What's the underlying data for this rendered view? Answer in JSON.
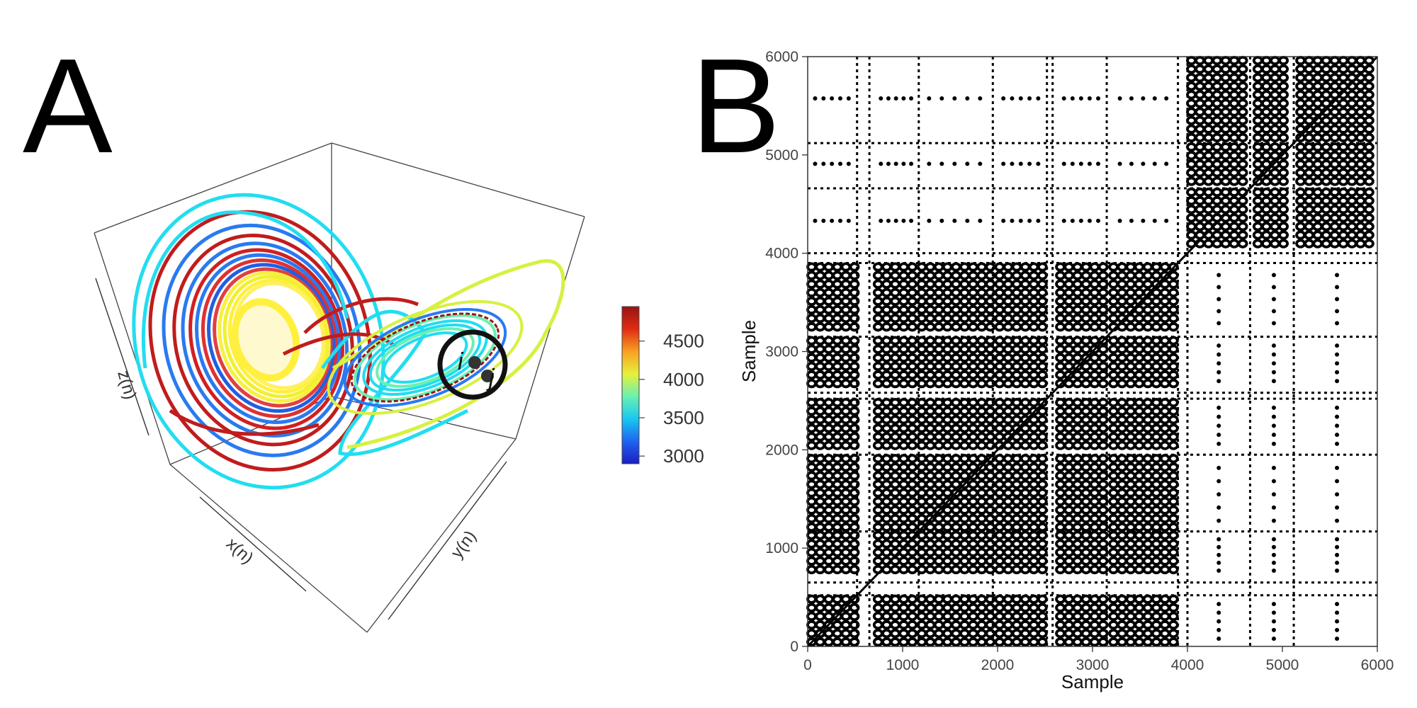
{
  "panels": {
    "a_label": "A",
    "b_label": "B"
  },
  "chart_data": [
    {
      "type": "scatter",
      "subtype": "3d-trajectory",
      "title": "",
      "axes": {
        "x": "x(n)",
        "y": "y(n)",
        "z": "z(n)"
      },
      "colorbar": {
        "ticks": [
          3000,
          3500,
          4000,
          4500
        ],
        "range": [
          2900,
          4950
        ],
        "colormap": [
          "#1c1ec0",
          "#1e64f0",
          "#19c8f0",
          "#6af0b0",
          "#e8f03c",
          "#f8a020",
          "#e02c14",
          "#981414"
        ]
      },
      "annotation": {
        "point_i": "i",
        "point_j": "j",
        "highlight": "circle"
      },
      "series": [
        {
          "left_lobe_rings": [
            210,
            185,
            165,
            150,
            138,
            128,
            120,
            112,
            105,
            98,
            92,
            86,
            80,
            75
          ],
          "ring_colors": [
            "#22ddf0",
            "#c01c1c",
            "#2a7af0",
            "#c01c1c",
            "#2a7af0",
            "#d02020",
            "#2a7af0",
            "#e03030",
            "#2060e0",
            "#e04040",
            "#f8f040",
            "#f0f030",
            "#fff040",
            "#fff060"
          ]
        }
      ]
    },
    {
      "type": "heatmap",
      "subtype": "recurrence-plot",
      "title": "",
      "xlabel": "Sample",
      "ylabel": "Sample",
      "xlim": [
        0,
        6000
      ],
      "ylim": [
        0,
        6000
      ],
      "xticks": [
        0,
        1000,
        2000,
        3000,
        4000,
        5000,
        6000
      ],
      "yticks": [
        0,
        1000,
        2000,
        3000,
        4000,
        5000,
        6000
      ],
      "regime_a": [
        [
          0,
          520
        ],
        [
          700,
          1170
        ],
        [
          1160,
          1950
        ],
        [
          1980,
          2520
        ],
        [
          2620,
          3150
        ],
        [
          3180,
          3900
        ]
      ],
      "regime_b": [
        [
          4000,
          4660
        ],
        [
          4700,
          5120
        ],
        [
          5150,
          6000
        ]
      ],
      "thin_bands": [
        520,
        650,
        1170,
        1950,
        2520,
        2580,
        3150,
        3900,
        4000,
        4660,
        5120
      ]
    }
  ]
}
